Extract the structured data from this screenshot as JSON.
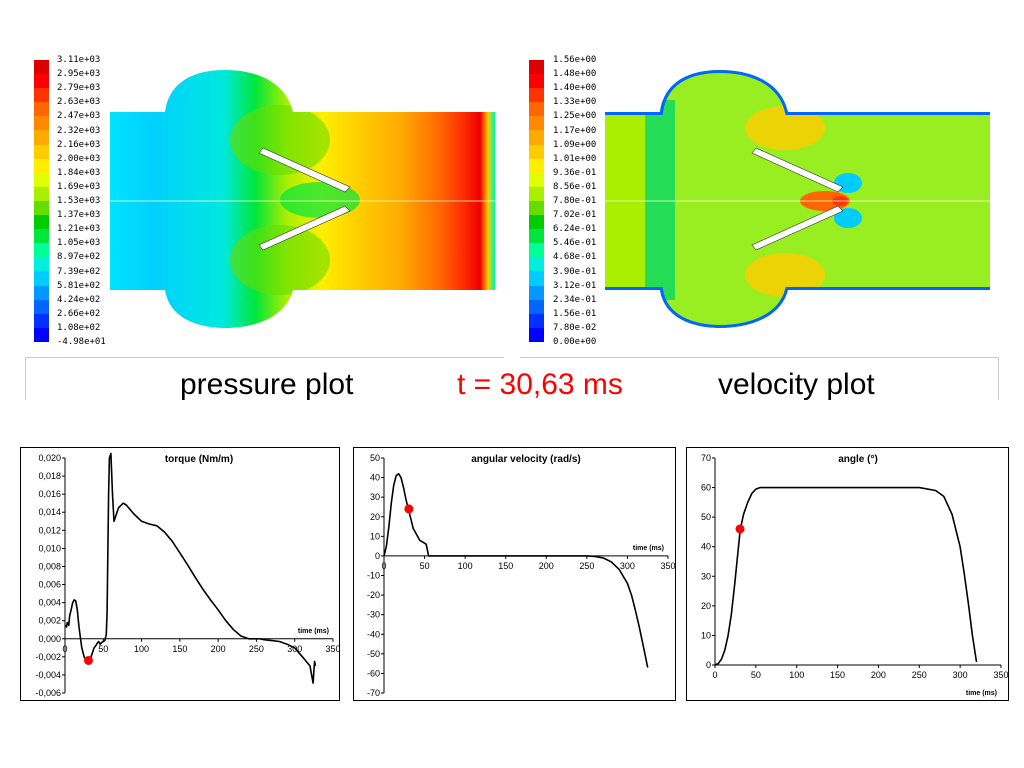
{
  "colors": {
    "scale": [
      "#0000ff",
      "#0032ff",
      "#0066ff",
      "#0099ff",
      "#00ccff",
      "#00eedd",
      "#00ff99",
      "#00e63c",
      "#00cc00",
      "#66dd00",
      "#aaee00",
      "#ddff00",
      "#ffee00",
      "#ffcc00",
      "#ffaa00",
      "#ff8800",
      "#ff6600",
      "#ff3300",
      "#ff0000",
      "#dd0000"
    ],
    "red": "#ff0000",
    "curve": "#000000"
  },
  "pressure_legend": [
    "3.11e+03",
    "2.95e+03",
    "2.79e+03",
    "2.63e+03",
    "2.47e+03",
    "2.32e+03",
    "2.16e+03",
    "2.00e+03",
    "1.84e+03",
    "1.69e+03",
    "1.53e+03",
    "1.37e+03",
    "1.21e+03",
    "1.05e+03",
    "8.97e+02",
    "7.39e+02",
    "5.81e+02",
    "4.24e+02",
    "2.66e+02",
    "1.08e+02",
    "-4.98e+01"
  ],
  "velocity_legend": [
    "1.56e+00",
    "1.48e+00",
    "1.40e+00",
    "1.33e+00",
    "1.25e+00",
    "1.17e+00",
    "1.09e+00",
    "1.01e+00",
    "9.36e-01",
    "8.56e-01",
    "7.80e-01",
    "7.02e-01",
    "6.24e-01",
    "5.46e-01",
    "4.68e-01",
    "3.90e-01",
    "3.12e-01",
    "2.34e-01",
    "1.56e-01",
    "7.80e-02",
    "0.00e+00"
  ],
  "captions": {
    "pressure": "pressure plot",
    "time": "t = 30,63 ms",
    "velocity": "velocity plot"
  },
  "chart_data": [
    {
      "type": "line",
      "title": "torque (Nm/m)",
      "xlabel": "time (ms)",
      "xlim": [
        0,
        350
      ],
      "ylim": [
        -0.006,
        0.02
      ],
      "xticks": [
        "0",
        "50",
        "100",
        "150",
        "200",
        "250",
        "300",
        "350"
      ],
      "yticks": [
        "0,020",
        "0,018",
        "0,016",
        "0,014",
        "0,012",
        "0,010",
        "0,008",
        "0,006",
        "0,004",
        "0,002",
        "0,000",
        "-0,002",
        "-0,004",
        "-0,006"
      ],
      "series": [
        {
          "x": [
            0,
            2,
            3,
            5,
            6,
            8,
            10,
            12,
            14,
            16,
            18,
            20,
            22,
            25,
            28,
            30,
            33,
            36,
            38,
            40,
            42,
            44,
            46,
            48,
            50,
            52,
            54,
            55,
            56,
            57,
            58,
            60,
            62,
            64,
            66,
            70,
            76,
            80,
            90,
            100,
            110,
            120,
            130,
            140,
            150,
            160,
            170,
            180,
            190,
            200,
            210,
            220,
            230,
            240,
            250,
            255,
            260,
            270,
            280,
            290,
            300,
            305,
            310,
            315,
            320,
            322,
            324,
            325,
            326,
            327
          ],
          "y": [
            0.0015,
            0.0013,
            0.0018,
            0.0015,
            0.0025,
            0.0032,
            0.004,
            0.0043,
            0.0042,
            0.0032,
            0.0015,
            0.0002,
            -0.001,
            -0.002,
            -0.0024,
            -0.0024,
            -0.0022,
            -0.0015,
            -0.001,
            -0.0008,
            -0.0005,
            -0.0003,
            -0.0006,
            -0.0004,
            -0.0003,
            -0.0002,
            0.0005,
            0.003,
            0.01,
            0.016,
            0.02,
            0.0205,
            0.016,
            0.013,
            0.0135,
            0.0145,
            0.015,
            0.0148,
            0.0138,
            0.013,
            0.0127,
            0.0125,
            0.0118,
            0.0108,
            0.0095,
            0.0082,
            0.0068,
            0.0055,
            0.0043,
            0.0032,
            0.002,
            0.001,
            0.0003,
            0.0,
            0.0,
            0.0,
            -0.0001,
            -0.0002,
            -0.0003,
            -0.0006,
            -0.001,
            -0.0015,
            -0.002,
            -0.0025,
            -0.003,
            -0.004,
            -0.0049,
            -0.0035,
            -0.0025,
            -0.003
          ]
        }
      ],
      "marker": {
        "x": 30.63,
        "y": -0.0024
      }
    },
    {
      "type": "line",
      "title": "angular velocity (rad/s)",
      "xlabel": "time (ms)",
      "xlim": [
        0,
        350
      ],
      "ylim": [
        -70,
        50
      ],
      "xticks": [
        "0",
        "50",
        "100",
        "150",
        "200",
        "250",
        "300",
        "350"
      ],
      "yticks": [
        "50",
        "40",
        "30",
        "20",
        "10",
        "0",
        "-10",
        "-20",
        "-30",
        "-40",
        "-50",
        "-60",
        "-70"
      ],
      "series": [
        {
          "x": [
            0,
            3,
            6,
            9,
            12,
            15,
            18,
            21,
            24,
            27,
            30,
            33,
            36,
            40,
            44,
            48,
            52,
            55,
            60,
            100,
            150,
            200,
            230,
            250,
            260,
            270,
            280,
            290,
            300,
            305,
            310,
            315,
            320,
            325
          ],
          "y": [
            0,
            5,
            15,
            27,
            36,
            41,
            42,
            40,
            35,
            29,
            24,
            19,
            14,
            11,
            8,
            7,
            6,
            0,
            0,
            0,
            0,
            0,
            0,
            0,
            -0.3,
            -1,
            -3,
            -7,
            -14,
            -20,
            -28,
            -37,
            -47,
            -57
          ]
        }
      ],
      "marker": {
        "x": 30.63,
        "y": 24
      }
    },
    {
      "type": "line",
      "title": "angle (°)",
      "xlabel": "time (ms)",
      "xlim": [
        0,
        350
      ],
      "ylim": [
        0,
        70
      ],
      "xticks": [
        "0",
        "50",
        "100",
        "150",
        "200",
        "250",
        "300",
        "350"
      ],
      "yticks": [
        "70",
        "60",
        "50",
        "40",
        "30",
        "20",
        "10",
        "0"
      ],
      "series": [
        {
          "x": [
            0,
            4,
            8,
            12,
            16,
            20,
            24,
            28,
            31,
            35,
            40,
            45,
            50,
            55,
            100,
            150,
            200,
            250,
            270,
            280,
            290,
            300,
            305,
            310,
            315,
            320
          ],
          "y": [
            0,
            0.5,
            2,
            5,
            10,
            17,
            27,
            38,
            46,
            51,
            55,
            58,
            59.5,
            60,
            60,
            60,
            60,
            60,
            59,
            57,
            51,
            40,
            31,
            21,
            10,
            1
          ]
        }
      ],
      "marker": {
        "x": 30.63,
        "y": 46
      }
    }
  ]
}
